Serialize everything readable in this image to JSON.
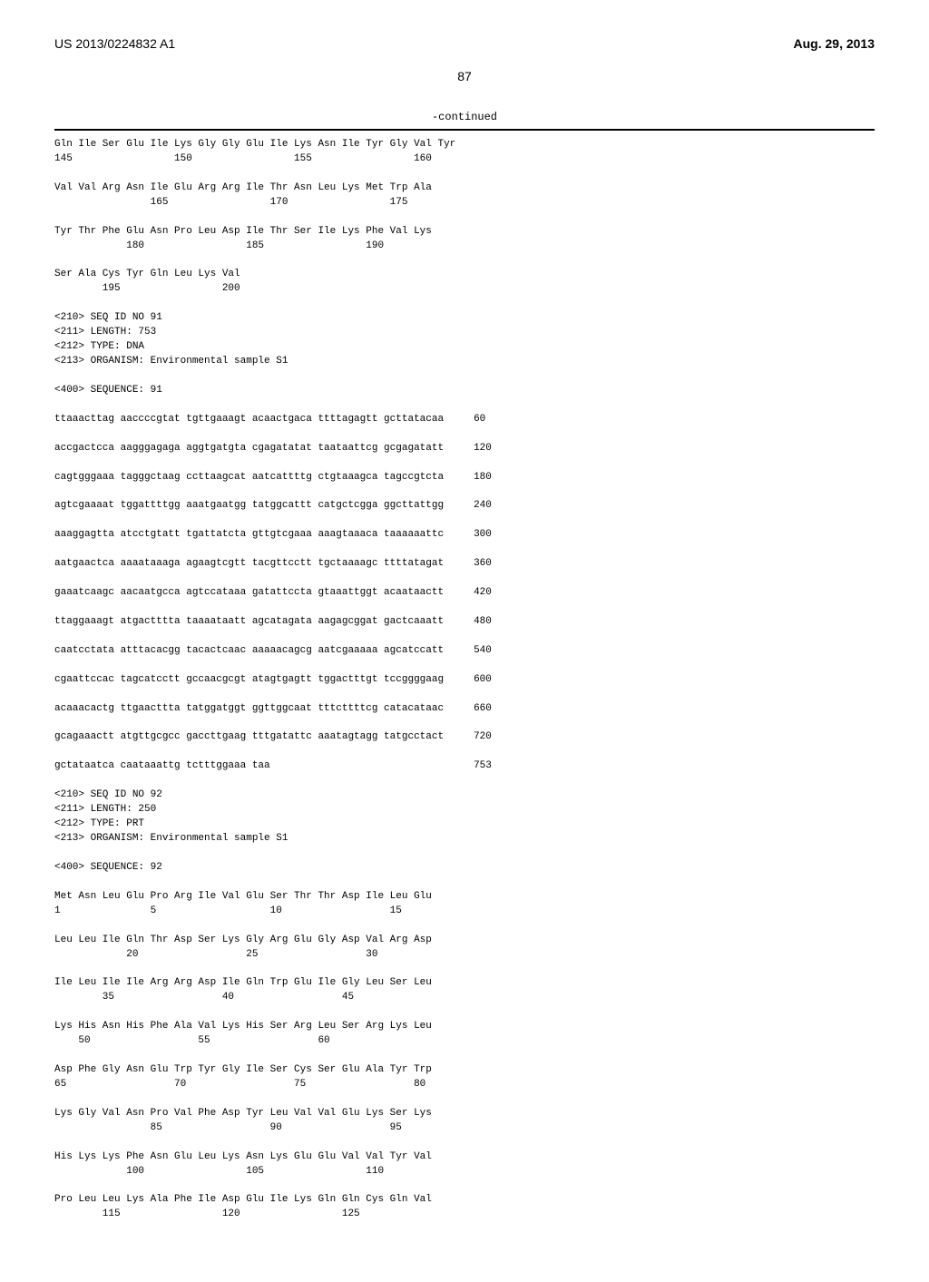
{
  "header": {
    "pub_number": "US 2013/0224832 A1",
    "pub_date": "Aug. 29, 2013"
  },
  "page_number": "87",
  "continued_label": "-continued",
  "seq90_tail": {
    "rows": [
      {
        "residues": "Gln Ile Ser Glu Ile Lys Gly Gly Glu Ile Lys Asn Ile Tyr Gly Val Tyr",
        "nums": "145                 150                 155                 160"
      },
      {
        "residues": "Val Val Arg Asn Ile Glu Arg Arg Ile Thr Asn Leu Lys Met Trp Ala",
        "nums": "                165                 170                 175"
      },
      {
        "residues": "Tyr Thr Phe Glu Asn Pro Leu Asp Ile Thr Ser Ile Lys Phe Val Lys",
        "nums": "            180                 185                 190"
      },
      {
        "residues": "Ser Ala Cys Tyr Gln Leu Lys Val",
        "nums": "        195                 200"
      }
    ]
  },
  "seq91": {
    "meta": [
      "<210> SEQ ID NO 91",
      "<211> LENGTH: 753",
      "<212> TYPE: DNA",
      "<213> ORGANISM: Environmental sample S1"
    ],
    "seq_label": "<400> SEQUENCE: 91",
    "lines": [
      {
        "seq": "ttaaacttag aaccccgtat tgttgaaagt acaactgaca ttttagagtt gcttatacaa",
        "num": "60"
      },
      {
        "seq": "accgactcca aagggagaga aggtgatgta cgagatatat taataattcg gcgagatatt",
        "num": "120"
      },
      {
        "seq": "cagtgggaaa tagggctaag ccttaagcat aatcattttg ctgtaaagca tagccgtcta",
        "num": "180"
      },
      {
        "seq": "agtcgaaaat tggattttgg aaatgaatgg tatggcattt catgctcgga ggcttattgg",
        "num": "240"
      },
      {
        "seq": "aaaggagtta atcctgtatt tgattatcta gttgtcgaaa aaagtaaaca taaaaaattc",
        "num": "300"
      },
      {
        "seq": "aatgaactca aaaataaaga agaagtcgtt tacgttcctt tgctaaaagc ttttatagat",
        "num": "360"
      },
      {
        "seq": "gaaatcaagc aacaatgcca agtccataaa gatattccta gtaaattggt acaataactt",
        "num": "420"
      },
      {
        "seq": "ttaggaaagt atgactttta taaaataatt agcatagata aagagcggat gactcaaatt",
        "num": "480"
      },
      {
        "seq": "caatcctata atttacacgg tacactcaac aaaaacagcg aatcgaaaaa agcatccatt",
        "num": "540"
      },
      {
        "seq": "cgaattccac tagcatcctt gccaacgcgt atagtgagtt tggactttgt tccggggaag",
        "num": "600"
      },
      {
        "seq": "acaaacactg ttgaacttta tatggatggt ggttggcaat tttcttttcg catacataac",
        "num": "660"
      },
      {
        "seq": "gcagaaactt atgttgcgcc gaccttgaag tttgatattc aaatagtagg tatgcctact",
        "num": "720"
      },
      {
        "seq": "gctataatca caataaattg tctttggaaa taa",
        "num": "753"
      }
    ]
  },
  "seq92": {
    "meta": [
      "<210> SEQ ID NO 92",
      "<211> LENGTH: 250",
      "<212> TYPE: PRT",
      "<213> ORGANISM: Environmental sample S1"
    ],
    "seq_label": "<400> SEQUENCE: 92",
    "rows": [
      {
        "residues": "Met Asn Leu Glu Pro Arg Ile Val Glu Ser Thr Thr Asp Ile Leu Glu",
        "nums": "1               5                   10                  15"
      },
      {
        "residues": "Leu Leu Ile Gln Thr Asp Ser Lys Gly Arg Glu Gly Asp Val Arg Asp",
        "nums": "            20                  25                  30"
      },
      {
        "residues": "Ile Leu Ile Ile Arg Arg Asp Ile Gln Trp Glu Ile Gly Leu Ser Leu",
        "nums": "        35                  40                  45"
      },
      {
        "residues": "Lys His Asn His Phe Ala Val Lys His Ser Arg Leu Ser Arg Lys Leu",
        "nums": "    50                  55                  60"
      },
      {
        "residues": "Asp Phe Gly Asn Glu Trp Tyr Gly Ile Ser Cys Ser Glu Ala Tyr Trp",
        "nums": "65                  70                  75                  80"
      },
      {
        "residues": "Lys Gly Val Asn Pro Val Phe Asp Tyr Leu Val Val Glu Lys Ser Lys",
        "nums": "                85                  90                  95"
      },
      {
        "residues": "His Lys Lys Phe Asn Glu Leu Lys Asn Lys Glu Glu Val Val Tyr Val",
        "nums": "            100                 105                 110"
      },
      {
        "residues": "Pro Leu Leu Lys Ala Phe Ile Asp Glu Ile Lys Gln Gln Cys Gln Val",
        "nums": "        115                 120                 125"
      }
    ]
  }
}
